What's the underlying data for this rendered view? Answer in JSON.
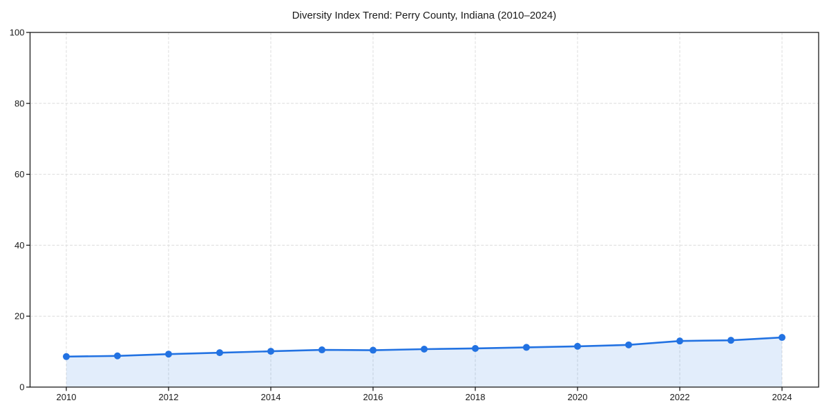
{
  "window": {
    "background_color": "#ffffff"
  },
  "chart_data": {
    "type": "line",
    "title": "Diversity Index Trend: Perry County, Indiana (2010–2024)",
    "x": [
      2010,
      2011,
      2012,
      2013,
      2014,
      2015,
      2016,
      2017,
      2018,
      2019,
      2020,
      2021,
      2022,
      2023,
      2024
    ],
    "series": [
      {
        "name": "Diversity Index",
        "values": [
          8.6,
          8.8,
          9.3,
          9.7,
          10.1,
          10.5,
          10.4,
          10.7,
          10.9,
          11.2,
          11.5,
          11.9,
          13.0,
          13.2,
          14.0
        ]
      }
    ],
    "xlabel": "",
    "ylabel": "",
    "xlim": [
      2010,
      2024
    ],
    "ylim": [
      0,
      100
    ],
    "xticks": [
      2010,
      2012,
      2014,
      2016,
      2018,
      2020,
      2022,
      2024
    ],
    "yticks": [
      0,
      20,
      40,
      60,
      80,
      100
    ],
    "grid": true,
    "grid_style": "dashed",
    "legend": false,
    "marker": "circle",
    "colors": {
      "line": "#2272E2",
      "marker": "#2272E2",
      "area_fill": "rgba(34,114,226,0.13)",
      "gridline": "#dcdcdc",
      "spine": "#1a1a1a",
      "text": "#1a1a1a",
      "background": "#ffffff"
    }
  }
}
